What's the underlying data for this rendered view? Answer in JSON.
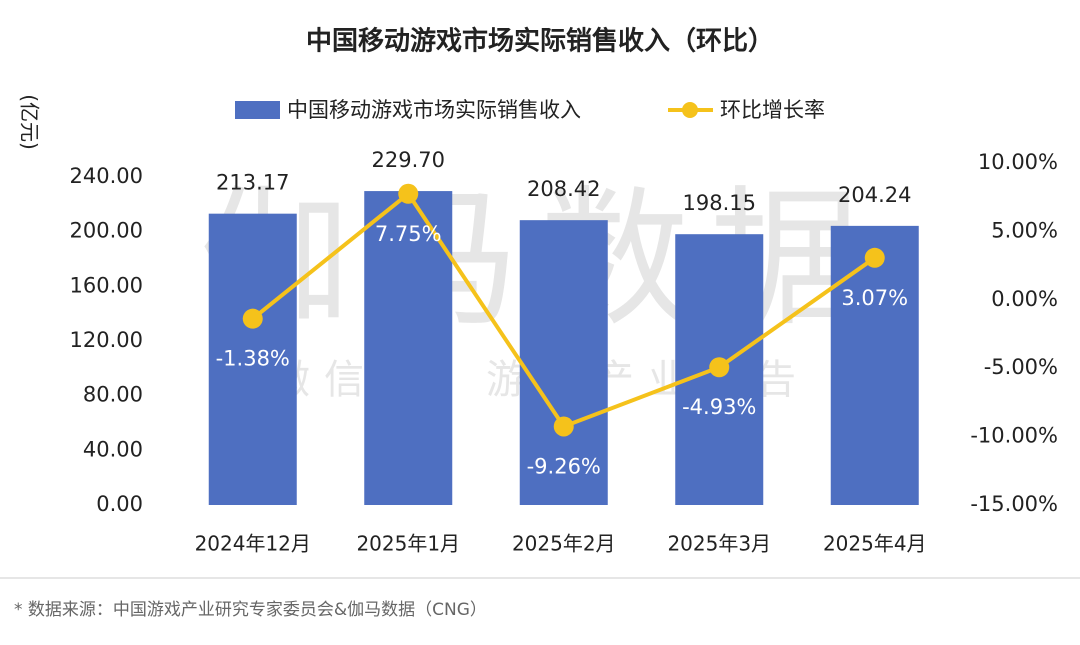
{
  "chart_data": {
    "type": "bar_line",
    "title": "中国移动游戏市场实际销售收入（环比）",
    "y_label": "(亿元)",
    "categories": [
      "2024年12月",
      "2025年1月",
      "2025年2月",
      "2025年3月",
      "2025年4月"
    ],
    "series": [
      {
        "name": "中国移动游戏市场实际销售收入",
        "type": "bar",
        "color": "#4e6fc1",
        "values": [
          213.17,
          229.7,
          208.42,
          198.15,
          204.24
        ],
        "value_labels": [
          "213.17",
          "229.70",
          "208.42",
          "198.15",
          "204.24"
        ]
      },
      {
        "name": "环比增长率",
        "type": "line",
        "axis": "y2",
        "color": "#f5c21b",
        "values": [
          -1.38,
          7.75,
          -9.26,
          -4.93,
          3.07
        ],
        "value_labels": [
          "-1.38%",
          "7.75%",
          "-9.26%",
          "-4.93%",
          "3.07%"
        ]
      }
    ],
    "ylim": [
      0,
      240
    ],
    "yticks": [
      {
        "value": 0,
        "label": "0.00"
      },
      {
        "value": 40,
        "label": "40.00"
      },
      {
        "value": 80,
        "label": "80.00"
      },
      {
        "value": 120,
        "label": "120.00"
      },
      {
        "value": 160,
        "label": "160.00"
      },
      {
        "value": 200,
        "label": "200.00"
      },
      {
        "value": 240,
        "label": "240.00"
      }
    ],
    "y2lim": [
      -15,
      10
    ],
    "y2ticks": [
      {
        "value": -15,
        "label": "-15.00%"
      },
      {
        "value": -10,
        "label": "-10.00%"
      },
      {
        "value": -5,
        "label": "-5.00%"
      },
      {
        "value": 0,
        "label": "0.00%"
      },
      {
        "value": 5,
        "label": "5.00%"
      },
      {
        "value": 10,
        "label": "10.00%"
      }
    ],
    "watermark": [
      "伽马数据",
      "微信号：游戏产业报告"
    ],
    "source": "* 数据来源：中国游戏产业研究专家委员会&伽马数据（CNG）"
  }
}
